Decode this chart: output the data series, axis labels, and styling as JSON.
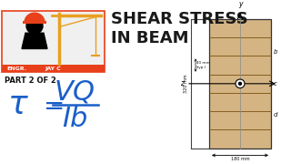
{
  "bg_color": "#ffffff",
  "title_line1": "SHEAR STRESS",
  "title_line2": "IN BEAM",
  "title_color": "#1a1a1a",
  "title_fontsize": 13,
  "part_text": "PART 2 OF 2",
  "part_fontsize": 6,
  "part_color": "#111111",
  "formula_color": "#1a5fc8",
  "logo_orange": "#e8401a",
  "logo_crane_color": "#e8a020",
  "logo_text1": "ENGR.",
  "logo_text2": "JAY C",
  "beam_fill": "#d4b483",
  "beam_edge": "#333333",
  "beam_line_color": "#7a5010",
  "dim_color": "#111111",
  "label_color": "#111111"
}
